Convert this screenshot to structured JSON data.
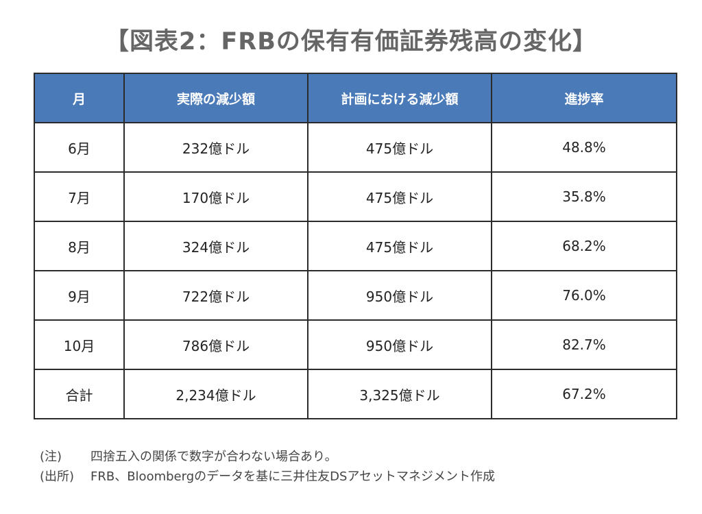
{
  "title": "【図表2：FRBの保有有価証券残高の変化】",
  "chart_data": {
    "type": "table",
    "title": "【図表2：FRBの保有有価証券残高の変化】",
    "columns": [
      "月",
      "実際の減少額",
      "計画における減少額",
      "進捗率"
    ],
    "rows": [
      [
        "6月",
        "232億ドル",
        "475億ドル",
        "48.8%"
      ],
      [
        "7月",
        "170億ドル",
        "475億ドル",
        "35.8%"
      ],
      [
        "8月",
        "324億ドル",
        "475億ドル",
        "68.2%"
      ],
      [
        "9月",
        "722億ドル",
        "950億ドル",
        "76.0%"
      ],
      [
        "10月",
        "786億ドル",
        "950億ドル",
        "82.7%"
      ],
      [
        "合計",
        "2,234億ドル",
        "3,325億ドル",
        "67.2%"
      ]
    ],
    "header_color": "#4a7ab8"
  },
  "notes": [
    {
      "tag": "(注)",
      "text": "四捨五入の関係で数字が合わない場合あり。"
    },
    {
      "tag": "(出所)",
      "text": "FRB、Bloombergのデータを基に三井住友DSアセットマネジメント作成"
    }
  ]
}
